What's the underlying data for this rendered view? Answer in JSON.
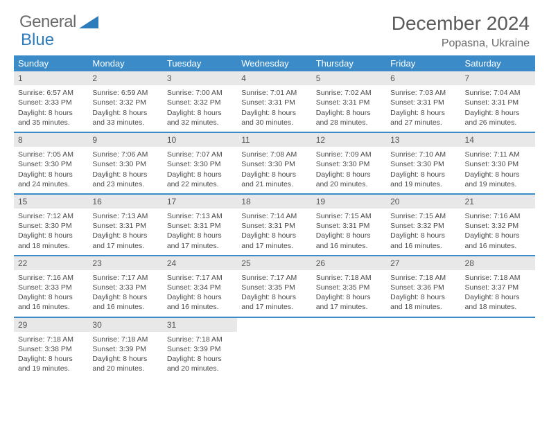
{
  "logo": {
    "text1": "General",
    "text2": "Blue"
  },
  "title": "December 2024",
  "location": "Popasna, Ukraine",
  "colors": {
    "header_bg": "#3b8bc9",
    "header_text": "#ffffff",
    "daynum_bg": "#e8e8e8",
    "row_divider": "#3b8bc9",
    "text": "#4a4a4a",
    "title_text": "#5a5a5a"
  },
  "weekdays": [
    "Sunday",
    "Monday",
    "Tuesday",
    "Wednesday",
    "Thursday",
    "Friday",
    "Saturday"
  ],
  "weeks": [
    [
      {
        "n": "1",
        "sr": "6:57 AM",
        "ss": "3:33 PM",
        "dl": "8 hours and 35 minutes."
      },
      {
        "n": "2",
        "sr": "6:59 AM",
        "ss": "3:32 PM",
        "dl": "8 hours and 33 minutes."
      },
      {
        "n": "3",
        "sr": "7:00 AM",
        "ss": "3:32 PM",
        "dl": "8 hours and 32 minutes."
      },
      {
        "n": "4",
        "sr": "7:01 AM",
        "ss": "3:31 PM",
        "dl": "8 hours and 30 minutes."
      },
      {
        "n": "5",
        "sr": "7:02 AM",
        "ss": "3:31 PM",
        "dl": "8 hours and 28 minutes."
      },
      {
        "n": "6",
        "sr": "7:03 AM",
        "ss": "3:31 PM",
        "dl": "8 hours and 27 minutes."
      },
      {
        "n": "7",
        "sr": "7:04 AM",
        "ss": "3:31 PM",
        "dl": "8 hours and 26 minutes."
      }
    ],
    [
      {
        "n": "8",
        "sr": "7:05 AM",
        "ss": "3:30 PM",
        "dl": "8 hours and 24 minutes."
      },
      {
        "n": "9",
        "sr": "7:06 AM",
        "ss": "3:30 PM",
        "dl": "8 hours and 23 minutes."
      },
      {
        "n": "10",
        "sr": "7:07 AM",
        "ss": "3:30 PM",
        "dl": "8 hours and 22 minutes."
      },
      {
        "n": "11",
        "sr": "7:08 AM",
        "ss": "3:30 PM",
        "dl": "8 hours and 21 minutes."
      },
      {
        "n": "12",
        "sr": "7:09 AM",
        "ss": "3:30 PM",
        "dl": "8 hours and 20 minutes."
      },
      {
        "n": "13",
        "sr": "7:10 AM",
        "ss": "3:30 PM",
        "dl": "8 hours and 19 minutes."
      },
      {
        "n": "14",
        "sr": "7:11 AM",
        "ss": "3:30 PM",
        "dl": "8 hours and 19 minutes."
      }
    ],
    [
      {
        "n": "15",
        "sr": "7:12 AM",
        "ss": "3:30 PM",
        "dl": "8 hours and 18 minutes."
      },
      {
        "n": "16",
        "sr": "7:13 AM",
        "ss": "3:31 PM",
        "dl": "8 hours and 17 minutes."
      },
      {
        "n": "17",
        "sr": "7:13 AM",
        "ss": "3:31 PM",
        "dl": "8 hours and 17 minutes."
      },
      {
        "n": "18",
        "sr": "7:14 AM",
        "ss": "3:31 PM",
        "dl": "8 hours and 17 minutes."
      },
      {
        "n": "19",
        "sr": "7:15 AM",
        "ss": "3:31 PM",
        "dl": "8 hours and 16 minutes."
      },
      {
        "n": "20",
        "sr": "7:15 AM",
        "ss": "3:32 PM",
        "dl": "8 hours and 16 minutes."
      },
      {
        "n": "21",
        "sr": "7:16 AM",
        "ss": "3:32 PM",
        "dl": "8 hours and 16 minutes."
      }
    ],
    [
      {
        "n": "22",
        "sr": "7:16 AM",
        "ss": "3:33 PM",
        "dl": "8 hours and 16 minutes."
      },
      {
        "n": "23",
        "sr": "7:17 AM",
        "ss": "3:33 PM",
        "dl": "8 hours and 16 minutes."
      },
      {
        "n": "24",
        "sr": "7:17 AM",
        "ss": "3:34 PM",
        "dl": "8 hours and 16 minutes."
      },
      {
        "n": "25",
        "sr": "7:17 AM",
        "ss": "3:35 PM",
        "dl": "8 hours and 17 minutes."
      },
      {
        "n": "26",
        "sr": "7:18 AM",
        "ss": "3:35 PM",
        "dl": "8 hours and 17 minutes."
      },
      {
        "n": "27",
        "sr": "7:18 AM",
        "ss": "3:36 PM",
        "dl": "8 hours and 18 minutes."
      },
      {
        "n": "28",
        "sr": "7:18 AM",
        "ss": "3:37 PM",
        "dl": "8 hours and 18 minutes."
      }
    ],
    [
      {
        "n": "29",
        "sr": "7:18 AM",
        "ss": "3:38 PM",
        "dl": "8 hours and 19 minutes."
      },
      {
        "n": "30",
        "sr": "7:18 AM",
        "ss": "3:39 PM",
        "dl": "8 hours and 20 minutes."
      },
      {
        "n": "31",
        "sr": "7:18 AM",
        "ss": "3:39 PM",
        "dl": "8 hours and 20 minutes."
      },
      null,
      null,
      null,
      null
    ]
  ],
  "labels": {
    "sunrise": "Sunrise:",
    "sunset": "Sunset:",
    "daylight": "Daylight:"
  }
}
